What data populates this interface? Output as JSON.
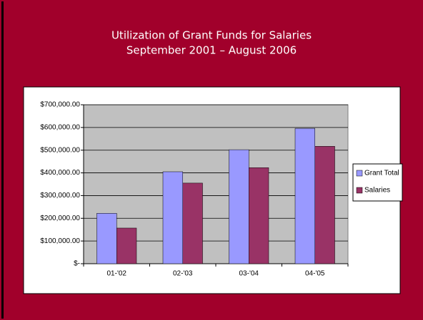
{
  "chart_data": {
    "type": "bar",
    "title": "Utilization of Grant Funds for Salaries",
    "subtitle": "September 2001 – August 2006",
    "categories": [
      "01-'02",
      "02-'03",
      "03-'04",
      "04-'05"
    ],
    "series": [
      {
        "name": "Grant Total",
        "color": "#9999ff",
        "values": [
          222000,
          405000,
          502000,
          596000
        ]
      },
      {
        "name": "Salaries",
        "color": "#993366",
        "values": [
          157000,
          355000,
          423000,
          517000
        ]
      }
    ],
    "ylim": [
      0,
      700000
    ],
    "yticks": [
      {
        "value": 0,
        "label": "$-"
      },
      {
        "value": 100000,
        "label": "$100,000.00"
      },
      {
        "value": 200000,
        "label": "$200,000.00"
      },
      {
        "value": 300000,
        "label": "$300,000.00"
      },
      {
        "value": 400000,
        "label": "$400,000.00"
      },
      {
        "value": 500000,
        "label": "$500,000.00"
      },
      {
        "value": 600000,
        "label": "$600,000.00"
      },
      {
        "value": 700000,
        "label": "$700,000.00"
      }
    ],
    "grid": true,
    "legend": "right"
  }
}
